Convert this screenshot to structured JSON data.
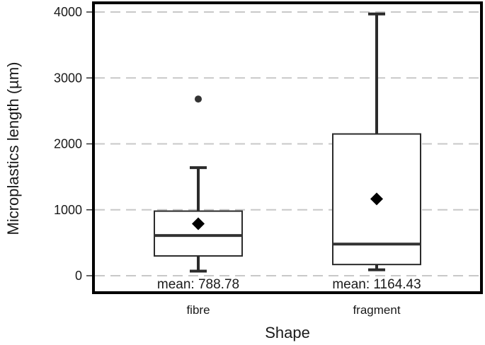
{
  "chart_data": {
    "type": "box",
    "title": "",
    "xlabel": "Shape",
    "ylabel": "Microplastics length (µm)",
    "ylim": [
      -250,
      4000
    ],
    "yticks": [
      0,
      1000,
      2000,
      3000,
      4000
    ],
    "grid": "horizontal dashed",
    "categories": [
      "fibre",
      "fragment"
    ],
    "boxes": [
      {
        "category": "fibre",
        "whisker_low": 70,
        "q1": 300,
        "median": 610,
        "q3": 980,
        "whisker_high": 1640,
        "mean": 788.78,
        "outliers": [
          2680
        ],
        "mean_label": "mean: 788.78"
      },
      {
        "category": "fragment",
        "whisker_low": 90,
        "q1": 170,
        "median": 480,
        "q3": 2150,
        "whisker_high": 3970,
        "mean": 1164.43,
        "outliers": [],
        "mean_label": "mean: 1164.43"
      }
    ],
    "colors": {
      "box_fill": "#ffffff",
      "box_stroke": "#2b2b2b",
      "grid": "#c8c8c8",
      "frame": "#000000",
      "marker": "#000000"
    }
  }
}
